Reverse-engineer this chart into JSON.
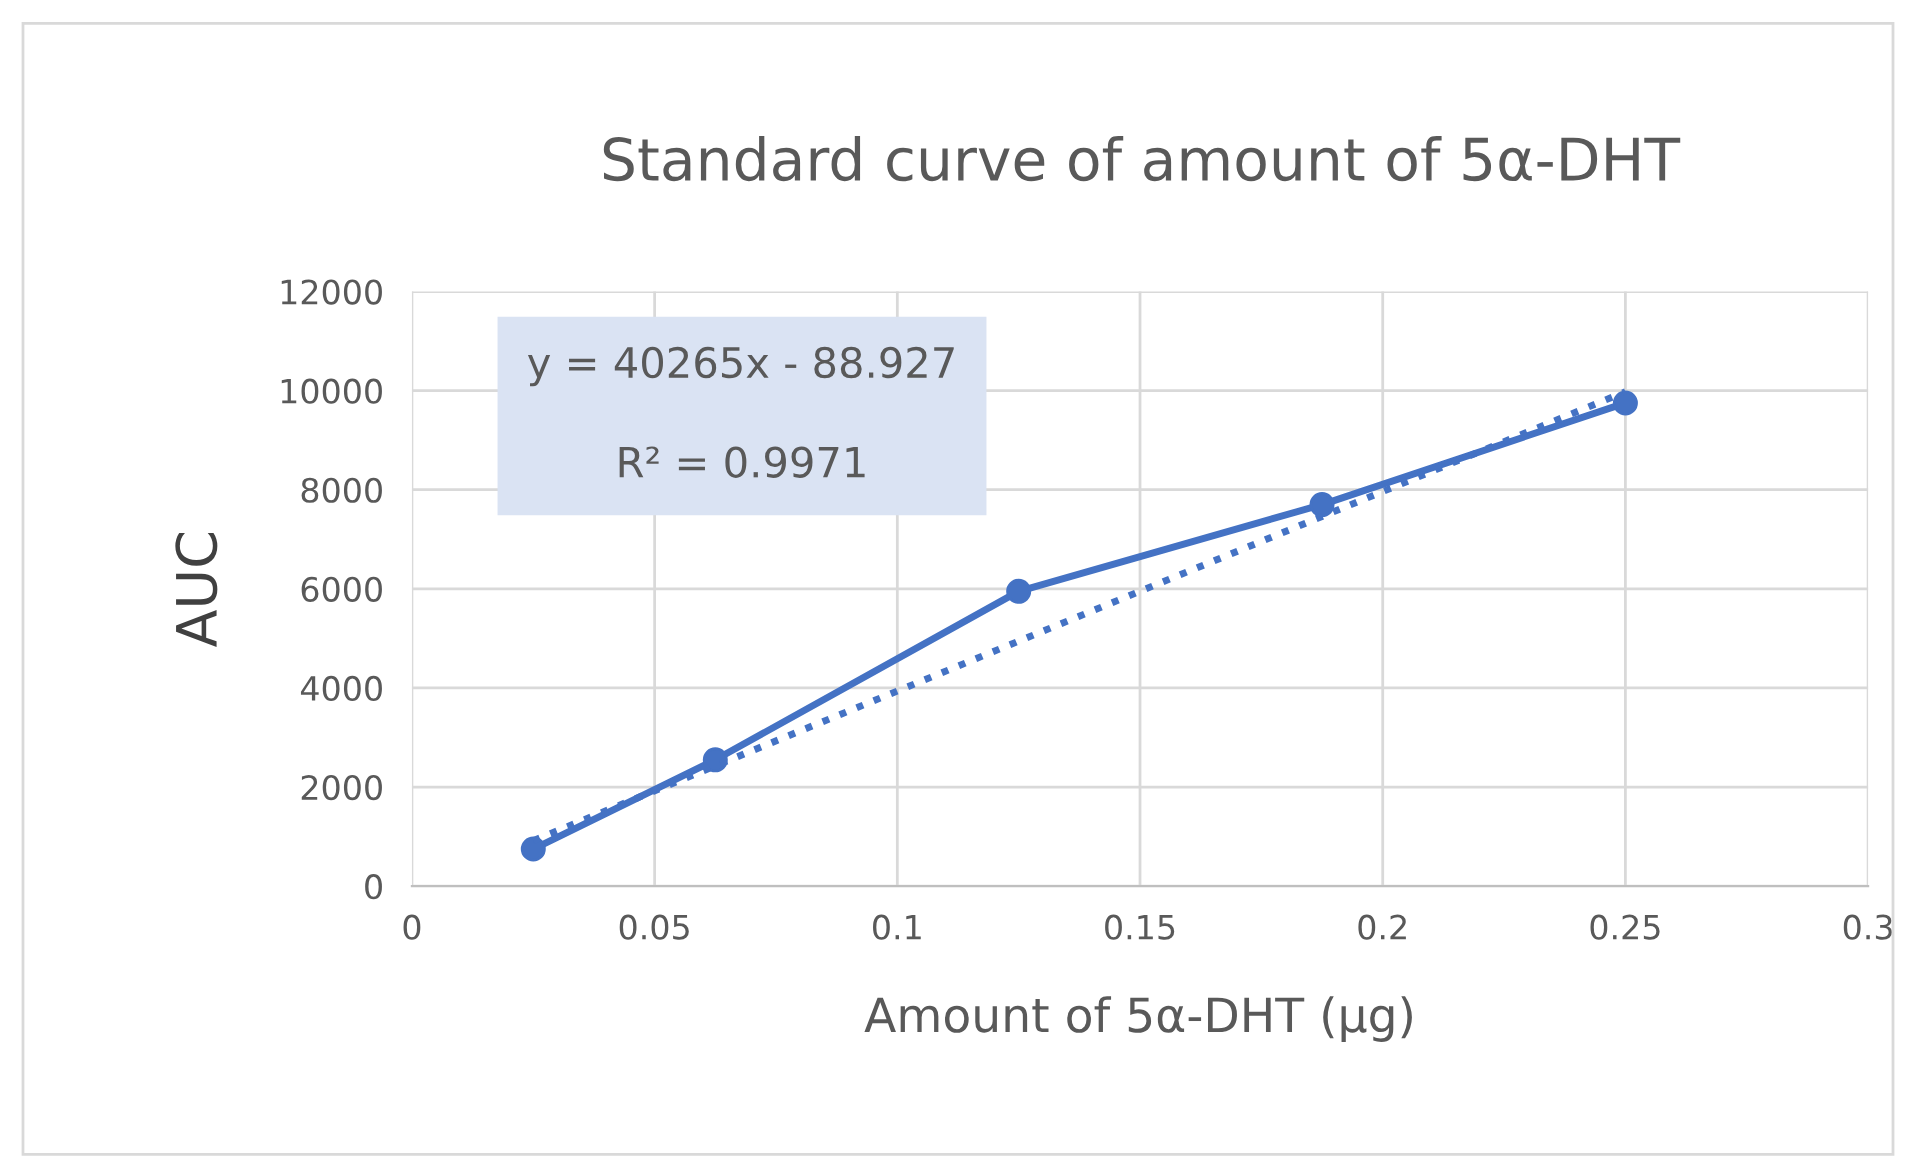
{
  "chart_data": {
    "type": "line",
    "title": "Standard curve of amount of 5α-DHT",
    "xlabel": "Amount of 5α-DHT (μg)",
    "ylabel": "AUC",
    "x": [
      0.025,
      0.0625,
      0.125,
      0.1875,
      0.25
    ],
    "series": [
      {
        "color": "#4472c4",
        "values": [
          750,
          2550,
          5950,
          7700,
          9750
        ],
        "marker": "circle",
        "line_style": "solid"
      },
      {
        "type": "line",
        "color": "#4472c4",
        "x": [
          0.025,
          0.25
        ],
        "values": [
          918,
          9977
        ],
        "marker": "none",
        "line_style": "dotted"
      }
    ],
    "annotations": [
      "y = 40265x - 88.927",
      "R² = 0.9971"
    ],
    "xlim": [
      0,
      0.3
    ],
    "xticks": [
      0,
      0.05,
      0.1,
      0.15,
      0.2,
      0.25,
      0.3
    ],
    "ylim": [
      0,
      12000
    ],
    "yticks": [
      0,
      2000,
      4000,
      6000,
      8000,
      10000,
      12000
    ],
    "grid": true,
    "legend": false
  }
}
